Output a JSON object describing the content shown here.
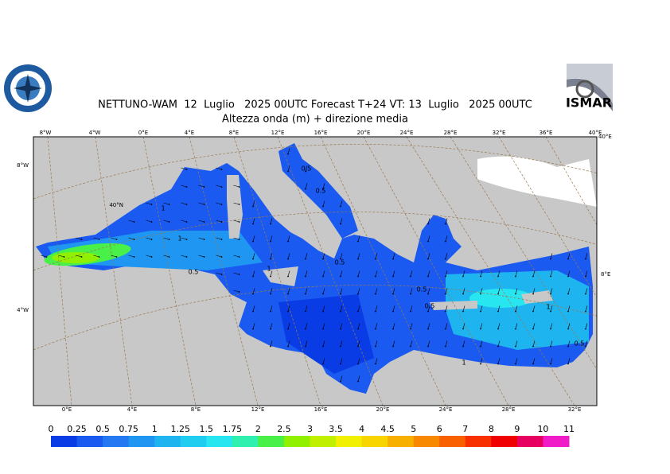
{
  "header": {
    "title": "NETTUNO-WAM  12  Luglio   2025 00UTC Forecast T+24 VT: 13  Luglio   2025 00UTC",
    "subtitle": "Altezza onda (m) + direzione media"
  },
  "logo": {
    "text": "ISMAR"
  },
  "map": {
    "top_labels": [
      "8°W",
      "4°W",
      "0°E",
      "4°E",
      "8°E",
      "12°E",
      "16°E",
      "20°E",
      "24°E",
      "28°E",
      "32°E",
      "36°E",
      "40°E"
    ],
    "left_labels": [
      "8°W",
      "40°N",
      "4°W"
    ],
    "bottom_labels": [
      "0°E",
      "4°E",
      "8°E",
      "12°E",
      "16°E",
      "20°E",
      "24°E",
      "28°E",
      "32°E"
    ],
    "right_labels": [
      "40°E",
      "8°E"
    ],
    "contour_labels": [
      "0.5",
      "0.5",
      "0.5",
      "0.5",
      "0.5",
      "0.5",
      "0.5",
      "1",
      "1",
      "1",
      "1",
      "1"
    ]
  },
  "colorbar": {
    "ticks": [
      0,
      0.25,
      0.5,
      0.75,
      1,
      1.25,
      1.5,
      1.75,
      2,
      2.5,
      3,
      3.5,
      4,
      4.5,
      5,
      6,
      7,
      8,
      9,
      10,
      11
    ],
    "colors": [
      "#0a3ce6",
      "#1a5af0",
      "#2478f2",
      "#1e96f2",
      "#1eb4f0",
      "#1ecdf0",
      "#28e6f0",
      "#30f0b0",
      "#48f048",
      "#90f000",
      "#c0f000",
      "#f0f000",
      "#f8d400",
      "#f8b000",
      "#f88800",
      "#f86000",
      "#f83000",
      "#f00000",
      "#e80060",
      "#f01cc8"
    ]
  }
}
